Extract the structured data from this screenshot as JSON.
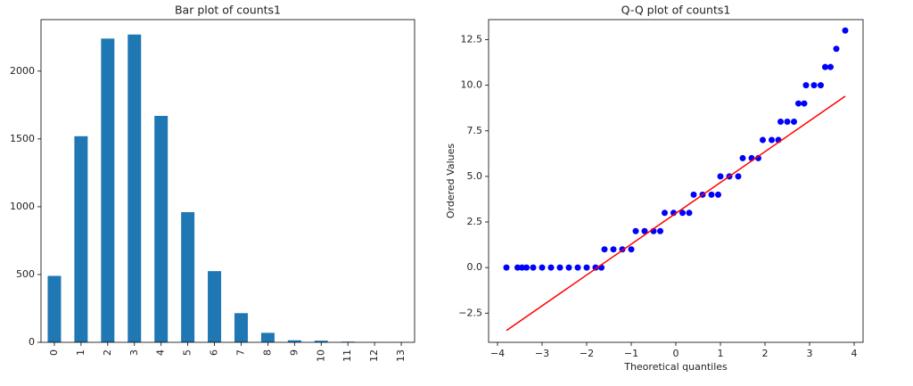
{
  "chart_data": [
    {
      "type": "bar",
      "title": "Bar plot of counts1",
      "categories": [
        "0",
        "1",
        "2",
        "3",
        "4",
        "5",
        "6",
        "7",
        "8",
        "9",
        "10",
        "11",
        "12",
        "13"
      ],
      "values": [
        490,
        1520,
        2240,
        2270,
        1670,
        960,
        525,
        215,
        70,
        15,
        12,
        5,
        1,
        1
      ],
      "color": "#1f77b4",
      "ylim": [
        0,
        2380
      ],
      "yticks": [
        0,
        500,
        1000,
        1500,
        2000
      ]
    },
    {
      "type": "scatter",
      "title": "Q-Q plot of counts1",
      "xlabel": "Theoretical quantiles",
      "ylabel": "Ordered Values",
      "xlim": [
        -4.2,
        4.2
      ],
      "ylim": [
        -4.1,
        13.6
      ],
      "xticks": [
        {
          "value": -4,
          "label": "−4"
        },
        {
          "value": -3,
          "label": "−3"
        },
        {
          "value": -2,
          "label": "−2"
        },
        {
          "value": -1,
          "label": "−1"
        },
        0,
        1,
        2,
        3,
        4
      ],
      "yticks": [
        {
          "value": -2.5,
          "label": "−2.5"
        },
        {
          "value": 0,
          "label": "0.0"
        },
        2.5,
        {
          "value": 5,
          "label": "5.0"
        },
        7.5,
        {
          "value": 10,
          "label": "10.0"
        },
        12.5
      ],
      "series": [
        {
          "color": "#0000ff",
          "mode": "markers",
          "x": [
            -3.8,
            -3.55,
            -3.45,
            -3.35,
            -3.2,
            -3.0,
            -2.8,
            -2.6,
            -2.4,
            -2.2,
            -2.0,
            -1.8,
            -1.67,
            -1.6,
            -1.4,
            -1.2,
            -1.0,
            -0.9,
            -0.7,
            -0.5,
            -0.35,
            -0.25,
            -0.05,
            0.15,
            0.3,
            0.4,
            0.6,
            0.8,
            0.95,
            1.0,
            1.2,
            1.4,
            1.5,
            1.7,
            1.85,
            1.95,
            2.15,
            2.3,
            2.35,
            2.5,
            2.65,
            2.75,
            2.88,
            2.92,
            3.1,
            3.25,
            3.35,
            3.47,
            3.6,
            3.8
          ],
          "values": [
            0,
            0,
            0,
            0,
            0,
            0,
            0,
            0,
            0,
            0,
            0,
            0,
            0,
            1,
            1,
            1,
            1,
            2,
            2,
            2,
            2,
            3,
            3,
            3,
            3,
            4,
            4,
            4,
            4,
            5,
            5,
            5,
            6,
            6,
            6,
            7,
            7,
            7,
            8,
            8,
            8,
            9,
            9,
            10,
            10,
            10,
            11,
            11,
            12,
            13
          ]
        },
        {
          "color": "#ff0000",
          "mode": "line",
          "x": [
            -3.8,
            3.8
          ],
          "values": [
            -3.45,
            9.4
          ]
        }
      ]
    }
  ]
}
